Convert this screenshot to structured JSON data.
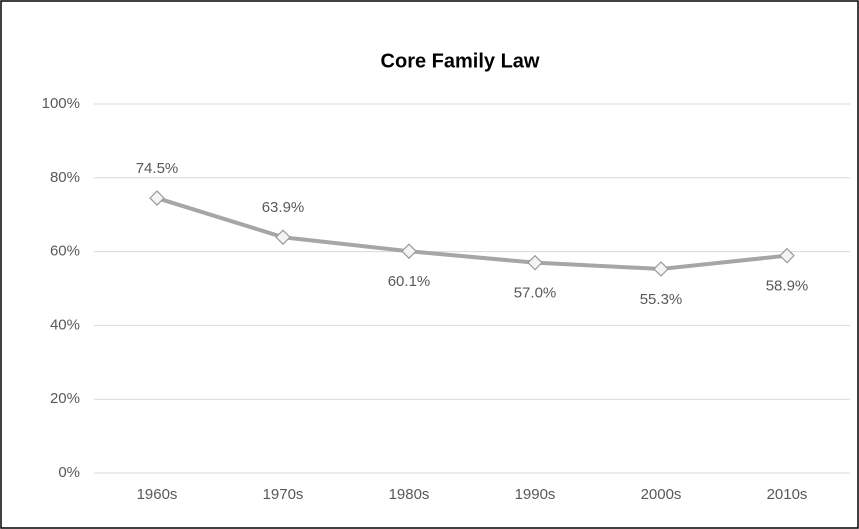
{
  "chart_data": {
    "type": "line",
    "title": "Core Family Law",
    "categories": [
      "1960s",
      "1970s",
      "1980s",
      "1990s",
      "2000s",
      "2010s"
    ],
    "values": [
      74.5,
      63.9,
      60.1,
      57.0,
      55.3,
      58.9
    ],
    "value_labels": [
      "74.5%",
      "63.9%",
      "60.1%",
      "57.0%",
      "55.3%",
      "58.9%"
    ],
    "color": "#a6a6a6",
    "ylim": [
      0,
      100
    ],
    "yticks": [
      {
        "value": 0,
        "label": "0%"
      },
      {
        "value": 20,
        "label": "20%"
      },
      {
        "value": 40,
        "label": "40%"
      },
      {
        "value": 60,
        "label": "60%"
      },
      {
        "value": 80,
        "label": "80%"
      },
      {
        "value": 100,
        "label": "100%"
      }
    ],
    "grid": true
  }
}
